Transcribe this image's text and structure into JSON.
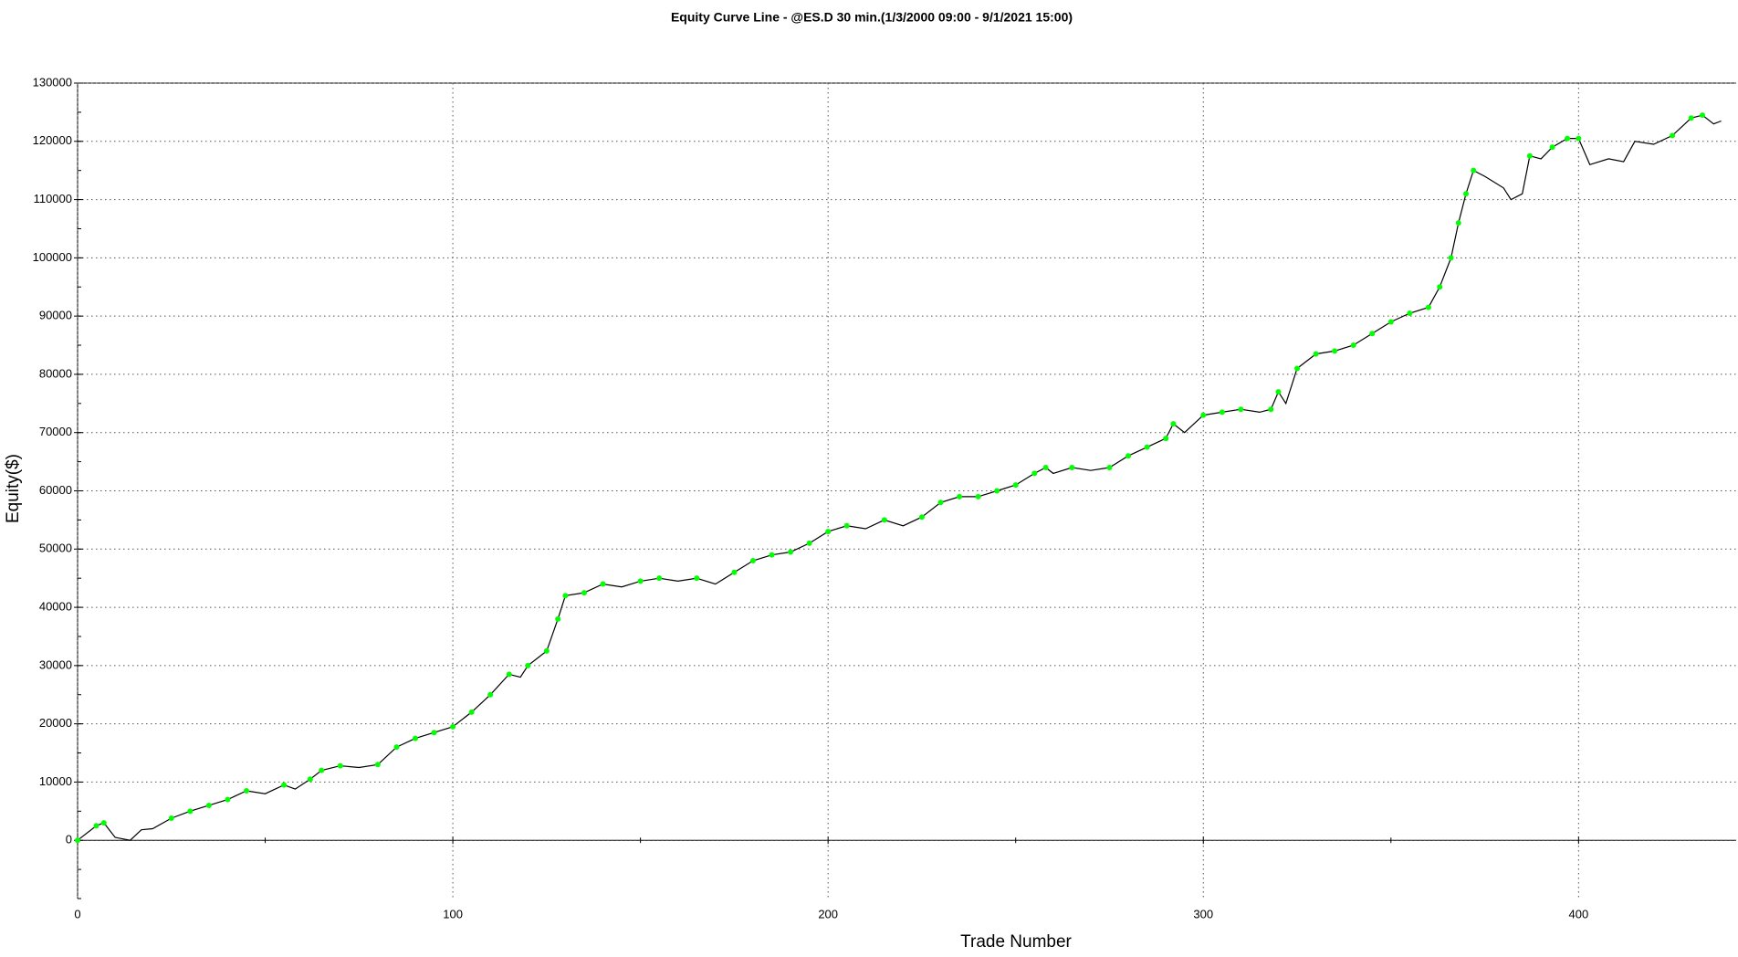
{
  "chart_data": {
    "type": "line",
    "title": "Equity Curve Line - @ES.D 30 min.(1/3/2000 09:00 - 9/1/2021 15:00)",
    "x_label": "Trade Number",
    "y_label": "Equity($)",
    "x": [
      0,
      5,
      7,
      10,
      14,
      17,
      20,
      25,
      30,
      35,
      40,
      45,
      50,
      55,
      58,
      62,
      65,
      70,
      75,
      80,
      85,
      90,
      95,
      100,
      105,
      110,
      115,
      118,
      120,
      125,
      128,
      130,
      135,
      140,
      145,
      150,
      155,
      160,
      165,
      170,
      175,
      180,
      185,
      190,
      195,
      200,
      205,
      210,
      215,
      220,
      225,
      230,
      235,
      240,
      245,
      250,
      255,
      258,
      260,
      265,
      270,
      275,
      280,
      285,
      290,
      292,
      295,
      300,
      305,
      310,
      315,
      318,
      320,
      322,
      325,
      330,
      335,
      340,
      345,
      350,
      355,
      360,
      363,
      366,
      368,
      370,
      372,
      375,
      380,
      382,
      385,
      387,
      390,
      393,
      397,
      400,
      403,
      408,
      412,
      415,
      420,
      425,
      430,
      433,
      436,
      438
    ],
    "values": [
      0,
      2500,
      3000,
      500,
      0,
      1800,
      2000,
      3800,
      5000,
      6000,
      7000,
      8500,
      8000,
      9500,
      8800,
      10500,
      12000,
      12800,
      12500,
      13000,
      16000,
      17500,
      18500,
      19500,
      22000,
      25000,
      28500,
      28000,
      30000,
      32500,
      38000,
      42000,
      42500,
      44000,
      43500,
      44500,
      45000,
      44500,
      45000,
      44000,
      46000,
      48000,
      49000,
      49500,
      51000,
      53000,
      54000,
      53500,
      55000,
      54000,
      55500,
      58000,
      59000,
      59000,
      60000,
      61000,
      63000,
      64000,
      63000,
      64000,
      63500,
      64000,
      66000,
      67500,
      69000,
      71500,
      70000,
      73000,
      73500,
      74000,
      73500,
      74000,
      77000,
      75000,
      81000,
      83500,
      84000,
      85000,
      87000,
      89000,
      90500,
      91500,
      95000,
      100000,
      106000,
      111000,
      115000,
      114000,
      112000,
      110000,
      111000,
      117500,
      117000,
      119000,
      120500,
      120500,
      116000,
      117000,
      116500,
      120000,
      119500,
      121000,
      124000,
      124500,
      123000,
      123500
    ],
    "color": "#000000",
    "marker_color": "#00ff00",
    "xlim": [
      0,
      442
    ],
    "xticks": [
      0,
      100,
      200,
      300,
      400
    ],
    "ylim": [
      -10000,
      130000
    ],
    "yticks": [
      0,
      10000,
      20000,
      30000,
      40000,
      50000,
      60000,
      70000,
      80000,
      90000,
      100000,
      110000,
      120000,
      130000
    ],
    "grid": true
  }
}
